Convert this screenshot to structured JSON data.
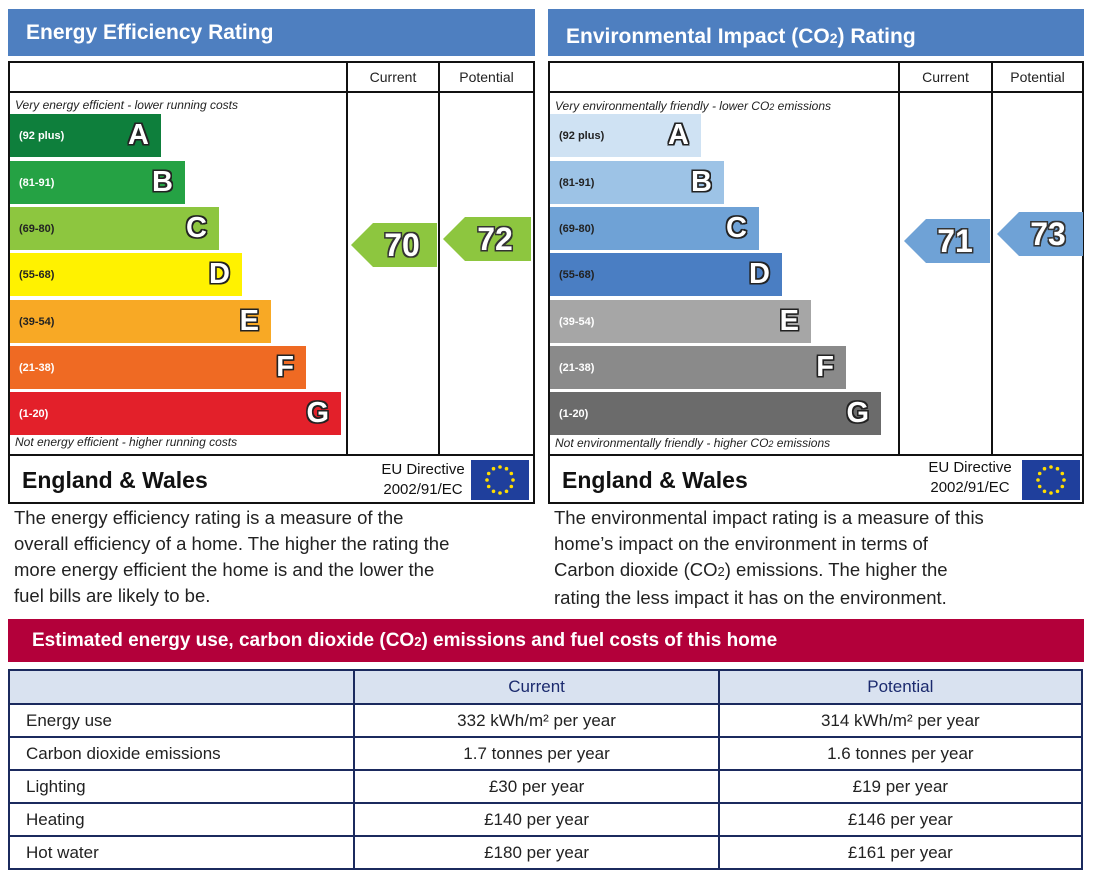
{
  "energy": {
    "title": "Energy Efficiency Rating",
    "col_current": "Current",
    "col_potential": "Potential",
    "top_note": "Very energy efficient - lower running costs",
    "bottom_note": "Not energy efficient - higher running costs",
    "bands": [
      {
        "range": "(92 plus)",
        "letter": "A",
        "color": "#0e7f3c"
      },
      {
        "range": "(81-91)",
        "letter": "B",
        "color": "#25a244"
      },
      {
        "range": "(69-80)",
        "letter": "C",
        "color": "#8dc63f"
      },
      {
        "range": "(55-68)",
        "letter": "D",
        "color": "#fff200"
      },
      {
        "range": "(39-54)",
        "letter": "E",
        "color": "#f8a925"
      },
      {
        "range": "(21-38)",
        "letter": "F",
        "color": "#ef6a23"
      },
      {
        "range": "(1-20)",
        "letter": "G",
        "color": "#e3202a"
      }
    ],
    "current": {
      "value": "70",
      "color": "#8dc63f"
    },
    "potential": {
      "value": "72",
      "color": "#8dc63f"
    },
    "region": "England & Wales",
    "directive_line1": "EU Directive",
    "directive_line2": "2002/91/EC",
    "description": [
      "The energy efficiency rating is a measure of the",
      "overall efficiency of a home. The higher the rating the",
      "more energy efficient the home is and the lower the",
      "fuel bills are likely to be."
    ]
  },
  "environment": {
    "title_pre": "Environmental Impact (CO",
    "title_sub": "2",
    "title_post": ") Rating",
    "col_current": "Current",
    "col_potential": "Potential",
    "top_note_pre": "Very environmentally friendly - lower CO",
    "top_note_sub": "2",
    "top_note_post": " emissions",
    "bottom_note_pre": "Not environmentally friendly - higher CO",
    "bottom_note_sub": "2",
    "bottom_note_post": " emissions",
    "bands": [
      {
        "range": "(92 plus)",
        "letter": "A",
        "color": "#cfe2f3"
      },
      {
        "range": "(81-91)",
        "letter": "B",
        "color": "#9dc3e6"
      },
      {
        "range": "(69-80)",
        "letter": "C",
        "color": "#6fa2d6"
      },
      {
        "range": "(55-68)",
        "letter": "D",
        "color": "#4a7ec3"
      },
      {
        "range": "(39-54)",
        "letter": "E",
        "color": "#a6a6a6"
      },
      {
        "range": "(21-38)",
        "letter": "F",
        "color": "#8a8a8a"
      },
      {
        "range": "(1-20)",
        "letter": "G",
        "color": "#6b6b6b"
      }
    ],
    "current": {
      "value": "71",
      "color": "#6fa2d6"
    },
    "potential": {
      "value": "73",
      "color": "#6fa2d6"
    },
    "region": "England & Wales",
    "directive_line1": "EU Directive",
    "directive_line2": "2002/91/EC",
    "description": [
      "The environmental impact rating is a measure of this",
      "home’s impact on the environment in terms of",
      "Carbon dioxide (CO",
      "2",
      ") emissions. The higher the",
      "rating the less impact it has on the environment."
    ]
  },
  "estimate": {
    "title_pre": "Estimated energy use, carbon dioxide (CO",
    "title_sub": "2",
    "title_post": ") emissions and fuel costs of this home",
    "col_current": "Current",
    "col_potential": "Potential",
    "rows": [
      {
        "label": "Energy use",
        "current": "332 kWh/m² per year",
        "potential": "314 kWh/m² per year"
      },
      {
        "label": "Carbon dioxide emissions",
        "current": "1.7 tonnes per year",
        "potential": "1.6 tonnes per year"
      },
      {
        "label": "Lighting",
        "current": "£30 per year",
        "potential": "£19 per year"
      },
      {
        "label": "Heating",
        "current": "£140 per year",
        "potential": "£146 per year"
      },
      {
        "label": "Hot water",
        "current": "£180 per year",
        "potential": "£161 per year"
      }
    ]
  }
}
